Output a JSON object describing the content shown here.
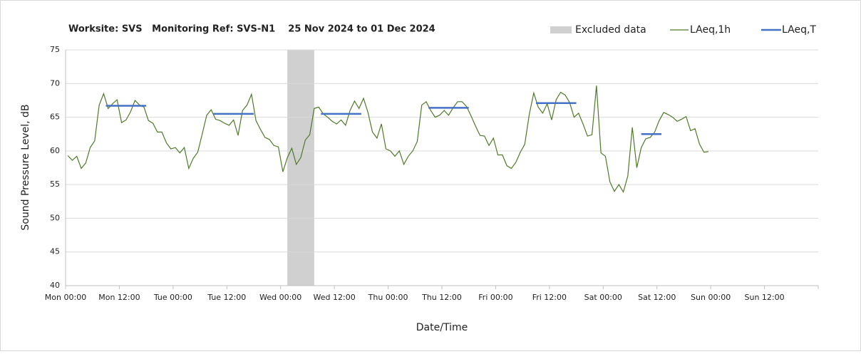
{
  "chart_data": {
    "type": "line",
    "title": "Worksite: SVS   Monitoring Ref: SVS-N1    25 Nov 2024 to 01 Dec 2024",
    "x_label": "Date/Time",
    "y_label": "Sound Pressure Level, dB",
    "xlim": [
      0,
      168
    ],
    "xticks": [
      {
        "value": 0,
        "label": "Mon 00:00"
      },
      {
        "value": 12,
        "label": "Mon 12:00"
      },
      {
        "value": 24,
        "label": "Tue 00:00"
      },
      {
        "value": 36,
        "label": "Tue 12:00"
      },
      {
        "value": 48,
        "label": "Wed 00:00"
      },
      {
        "value": 60,
        "label": "Wed 12:00"
      },
      {
        "value": 72,
        "label": "Thu 00:00"
      },
      {
        "value": 84,
        "label": "Thu 12:00"
      },
      {
        "value": 96,
        "label": "Fri 00:00"
      },
      {
        "value": 108,
        "label": "Fri 12:00"
      },
      {
        "value": 120,
        "label": "Sat 00:00"
      },
      {
        "value": 132,
        "label": "Sat 12:00"
      },
      {
        "value": 144,
        "label": "Sun 00:00"
      },
      {
        "value": 156,
        "label": "Sun 12:00"
      }
    ],
    "ylim": [
      40,
      75
    ],
    "yticks": [
      40,
      45,
      50,
      55,
      60,
      65,
      70,
      75
    ],
    "grid": true,
    "legend": "top-right",
    "excluded": {
      "name": "Excluded data",
      "color": "#d0d0d0",
      "range": [
        49.5,
        55.5
      ]
    },
    "x": [
      0.5,
      1.5,
      2.5,
      3.5,
      4.5,
      5.5,
      6.5,
      7.5,
      8.5,
      9.5,
      10.5,
      11.5,
      12.5,
      13.5,
      14.5,
      15.5,
      16.5,
      17.5,
      18.5,
      19.5,
      20.5,
      21.5,
      22.5,
      23.5,
      24.5,
      25.5,
      26.5,
      27.5,
      28.5,
      29.5,
      30.5,
      31.5,
      32.5,
      33.5,
      34.5,
      35.5,
      36.5,
      37.5,
      38.5,
      39.5,
      40.5,
      41.5,
      42.5,
      43.5,
      44.5,
      45.5,
      46.5,
      47.5,
      48.5,
      49.5,
      50.5,
      51.5,
      52.5,
      53.5,
      54.5,
      55.5,
      56.5,
      57.5,
      58.5,
      59.5,
      60.5,
      61.5,
      62.5,
      63.5,
      64.5,
      65.5,
      66.5,
      67.5,
      68.5,
      69.5,
      70.5,
      71.5,
      72.5,
      73.5,
      74.5,
      75.5,
      76.5,
      77.5,
      78.5,
      79.5,
      80.5,
      81.5,
      82.5,
      83.5,
      84.5,
      85.5,
      86.5,
      87.5,
      88.5,
      89.5,
      90.5,
      91.5,
      92.5,
      93.5,
      94.5,
      95.5,
      96.5,
      97.5,
      98.5,
      99.5,
      100.5,
      101.5,
      102.5,
      103.5,
      104.5,
      105.5,
      106.5,
      107.5,
      108.5,
      109.5,
      110.5,
      111.5,
      112.5,
      113.5,
      114.5,
      115.5,
      116.5,
      117.5,
      118.5,
      119.5,
      120.5,
      121.5,
      122.5,
      123.5,
      124.5,
      125.5,
      126.5,
      127.5,
      128.5,
      129.5,
      130.5,
      131.5,
      132.5,
      133.5,
      134.5,
      135.5,
      136.5,
      137.5,
      138.5,
      139.5,
      140.5,
      141.5,
      142.5,
      143.5
    ],
    "series": [
      {
        "name": "LAeq,1h",
        "color": "#4f7a28",
        "values": [
          59.3,
          58.6,
          59.2,
          57.4,
          58.2,
          60.5,
          61.5,
          66.8,
          68.5,
          66.3,
          67,
          67.6,
          64.2,
          64.6,
          65.8,
          67.5,
          66.8,
          66.5,
          64.5,
          64.1,
          62.8,
          62.8,
          61.2,
          60.3,
          60.5,
          59.7,
          60.5,
          57.4,
          58.9,
          59.8,
          62.5,
          65.3,
          66.1,
          64.7,
          64.5,
          64.1,
          63.8,
          64.6,
          62.3,
          66,
          66.8,
          68.4,
          64.5,
          63.2,
          62,
          61.7,
          60.8,
          60.6,
          56.9,
          59,
          60.4,
          58,
          59,
          61.6,
          62.4,
          66.3,
          66.5,
          65.5,
          65,
          64.4,
          64,
          64.6,
          63.8,
          66,
          67.4,
          66.3,
          67.8,
          65.7,
          62.8,
          61.9,
          64,
          60.3,
          60,
          59.2,
          60,
          58,
          59.2,
          60,
          61.4,
          66.8,
          67.3,
          66,
          65,
          65.3,
          66,
          65.3,
          66.4,
          67.3,
          67.3,
          66.6,
          65.2,
          63.7,
          62.3,
          62.2,
          60.8,
          61.9,
          59.4,
          59.4,
          57.8,
          57.4,
          58.3,
          59.8,
          61,
          65.4,
          68.6,
          66.5,
          65.6,
          67,
          64.6,
          67.6,
          68.7,
          68.3,
          67.2,
          65,
          65.6,
          64,
          62.2,
          62.4,
          69.7,
          59.7,
          59.2,
          55.4,
          54,
          55,
          53.9,
          56.3,
          63.5,
          57.5,
          60.5,
          61.8,
          62,
          62.8,
          64.5,
          65.7,
          65.4,
          65,
          64.4,
          64.7,
          65.1,
          63,
          63.3,
          61,
          59.8,
          59.9
        ]
      }
    ],
    "period_levels": {
      "name": "LAeq,T",
      "color": "#4472c4",
      "start": [
        9,
        33,
        57,
        81,
        105,
        128.5
      ],
      "end": [
        18,
        42,
        66,
        90,
        114,
        133
      ],
      "values": [
        66.7,
        65.5,
        65.5,
        66.4,
        67.1,
        62.5
      ]
    }
  }
}
